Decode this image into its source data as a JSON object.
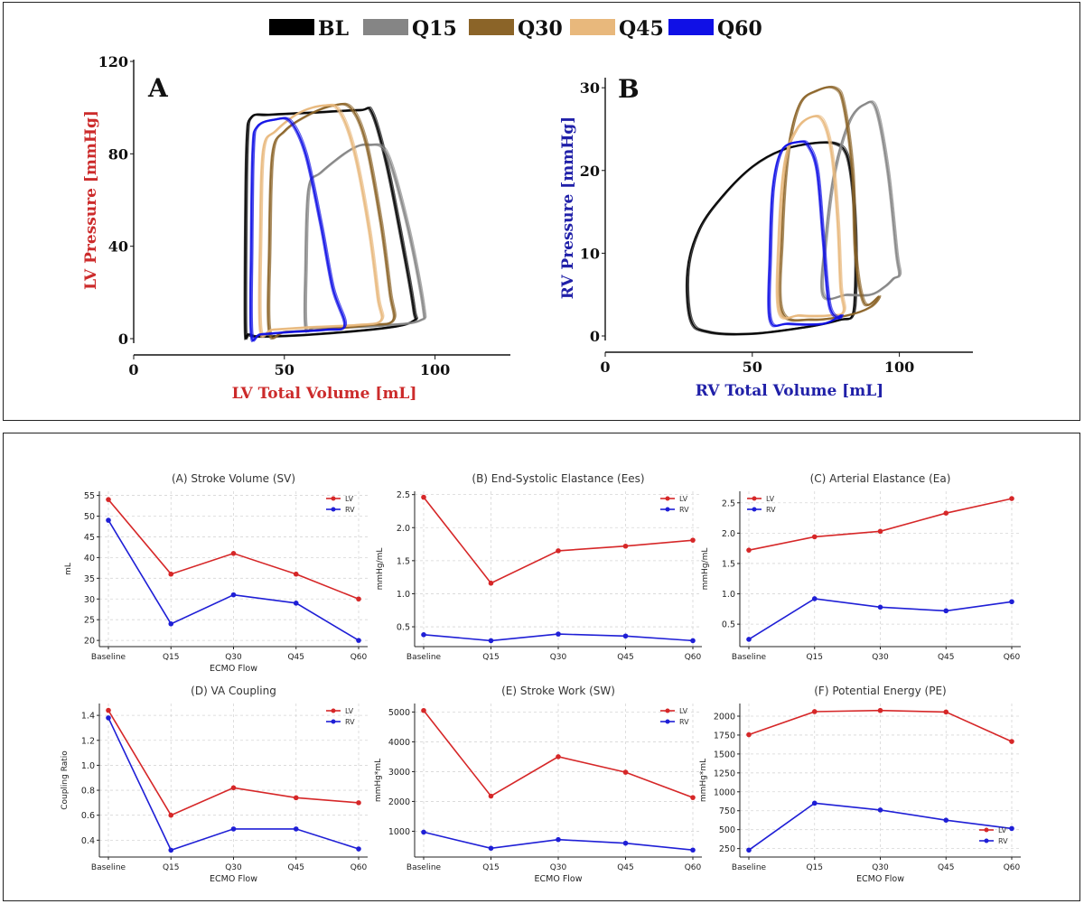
{
  "colors": {
    "BL": "#000000",
    "Q15": "#858585",
    "Q30": "#8B6428",
    "Q45": "#E8B87C",
    "Q60": "#1010E6",
    "LV": "#d62728",
    "RV": "#1f1fd6",
    "lv_label": "#cc2b2b",
    "rv_label": "#2020a8"
  },
  "top_legend": [
    {
      "key": "BL",
      "label": "BL"
    },
    {
      "key": "Q15",
      "label": "Q15"
    },
    {
      "key": "Q30",
      "label": "Q30"
    },
    {
      "key": "Q45",
      "label": "Q45"
    },
    {
      "key": "Q60",
      "label": "Q60"
    }
  ],
  "pv_loops": [
    {
      "panel_label": "A",
      "xlabel": "LV Total Volume [mL]",
      "ylabel": "LV Pressure [mmHg]",
      "xlim": [
        0,
        125
      ],
      "ylim": [
        0,
        120
      ],
      "xticks": [
        0,
        50,
        100
      ],
      "yticks": [
        0,
        40,
        80,
        120
      ],
      "label_color": "lv_label",
      "loops": [
        {
          "key": "BL",
          "points": [
            [
              37,
              3
            ],
            [
              37,
              40
            ],
            [
              37.5,
              85
            ],
            [
              39,
              96
            ],
            [
              45,
              97
            ],
            [
              60,
              98
            ],
            [
              75,
              99
            ],
            [
              79,
              98
            ],
            [
              84,
              75
            ],
            [
              90,
              35
            ],
            [
              93,
              12
            ],
            [
              93,
              8
            ],
            [
              85,
              5
            ],
            [
              60,
              2
            ],
            [
              42,
              1
            ],
            [
              38,
              2
            ]
          ]
        },
        {
          "key": "Q15",
          "points": [
            [
              57,
              5
            ],
            [
              57,
              30
            ],
            [
              58,
              65
            ],
            [
              62,
              72
            ],
            [
              72,
              82
            ],
            [
              78,
              84
            ],
            [
              84,
              80
            ],
            [
              91,
              48
            ],
            [
              96,
              14
            ],
            [
              95,
              8
            ],
            [
              85,
              6
            ],
            [
              70,
              5
            ],
            [
              60,
              5
            ]
          ]
        },
        {
          "key": "Q30",
          "points": [
            [
              45,
              3
            ],
            [
              45,
              40
            ],
            [
              46,
              80
            ],
            [
              50,
              90
            ],
            [
              58,
              97
            ],
            [
              66,
              101
            ],
            [
              72,
              100
            ],
            [
              77,
              85
            ],
            [
              82,
              50
            ],
            [
              85,
              20
            ],
            [
              86,
              8
            ],
            [
              78,
              6
            ],
            [
              62,
              4
            ],
            [
              50,
              3
            ]
          ]
        },
        {
          "key": "Q45",
          "points": [
            [
              42,
              4
            ],
            [
              42,
              45
            ],
            [
              43,
              82
            ],
            [
              47,
              90
            ],
            [
              55,
              98
            ],
            [
              63,
              101
            ],
            [
              68,
              99
            ],
            [
              73,
              82
            ],
            [
              78,
              48
            ],
            [
              81,
              18
            ],
            [
              82,
              8
            ],
            [
              74,
              6
            ],
            [
              58,
              5
            ],
            [
              46,
              4
            ]
          ]
        },
        {
          "key": "Q60",
          "points": [
            [
              39,
              2
            ],
            [
              39,
              40
            ],
            [
              39.5,
              82
            ],
            [
              41,
              92
            ],
            [
              47,
              95
            ],
            [
              52,
              94
            ],
            [
              57,
              80
            ],
            [
              62,
              50
            ],
            [
              66,
              22
            ],
            [
              70,
              6
            ],
            [
              64,
              4
            ],
            [
              52,
              3
            ],
            [
              42,
              2
            ]
          ]
        }
      ]
    },
    {
      "panel_label": "B",
      "xlabel": "RV Total Volume [mL]",
      "ylabel": "RV Pressure [mmHg]",
      "xlim": [
        0,
        125
      ],
      "ylim": [
        0,
        31
      ],
      "xticks": [
        0,
        50,
        100
      ],
      "yticks": [
        0,
        10,
        20,
        30
      ],
      "label_color": "rv_label",
      "loops": [
        {
          "key": "BL",
          "points": [
            [
              70,
              23.3
            ],
            [
              78,
              23.3
            ],
            [
              82,
              22
            ],
            [
              84,
              18
            ],
            [
              85,
              12
            ],
            [
              85,
              6
            ],
            [
              84,
              2.5
            ],
            [
              80,
              2
            ],
            [
              70,
              1.2
            ],
            [
              50,
              0.3
            ],
            [
              35,
              0.5
            ],
            [
              29,
              2
            ],
            [
              28,
              8
            ],
            [
              32,
              13
            ],
            [
              40,
              17
            ],
            [
              50,
              20.5
            ],
            [
              60,
              22.5
            ]
          ]
        },
        {
          "key": "Q15",
          "points": [
            [
              74,
              5
            ],
            [
              75,
              12
            ],
            [
              78,
              20
            ],
            [
              83,
              26
            ],
            [
              88,
              28
            ],
            [
              92,
              27.5
            ],
            [
              96,
              20
            ],
            [
              99,
              10
            ],
            [
              100,
              7.5
            ],
            [
              98,
              7
            ],
            [
              95,
              6
            ],
            [
              90,
              5
            ],
            [
              82,
              5
            ]
          ]
        },
        {
          "key": "Q30",
          "points": [
            [
              60,
              3
            ],
            [
              60,
              12
            ],
            [
              62,
              22
            ],
            [
              66,
              28
            ],
            [
              72,
              29.7
            ],
            [
              78,
              30
            ],
            [
              81,
              28
            ],
            [
              84,
              20
            ],
            [
              85,
              10
            ],
            [
              88,
              4
            ],
            [
              93,
              4.8
            ],
            [
              90,
              3.5
            ],
            [
              82,
              2.5
            ],
            [
              70,
              2
            ]
          ]
        },
        {
          "key": "Q45",
          "points": [
            [
              59,
              3
            ],
            [
              59,
              12
            ],
            [
              61,
              21
            ],
            [
              65,
              25
            ],
            [
              70,
              26.5
            ],
            [
              74,
              26
            ],
            [
              77,
              22
            ],
            [
              79,
              14
            ],
            [
              80,
              6
            ],
            [
              81,
              3
            ],
            [
              76,
              2.5
            ],
            [
              66,
              2.5
            ]
          ]
        },
        {
          "key": "Q60",
          "points": [
            [
              56,
              2
            ],
            [
              56,
              10
            ],
            [
              57,
              18
            ],
            [
              60,
              22.5
            ],
            [
              66,
              23.5
            ],
            [
              69,
              23
            ],
            [
              72,
              20
            ],
            [
              74,
              12
            ],
            [
              76,
              4
            ],
            [
              79,
              2.2
            ],
            [
              80,
              2.5
            ],
            [
              74,
              1.5
            ],
            [
              62,
              1.5
            ]
          ]
        }
      ]
    }
  ],
  "chart_data": [
    {
      "type": "line",
      "title": "(A) Stroke Volume (SV)",
      "categories": [
        "Baseline",
        "Q15",
        "Q30",
        "Q45",
        "Q60"
      ],
      "series": [
        {
          "name": "LV",
          "values": [
            54,
            36,
            41,
            36,
            30
          ]
        },
        {
          "name": "RV",
          "values": [
            49,
            24,
            31,
            29,
            20
          ]
        }
      ],
      "xlabel": "ECMO Flow",
      "ylabel": "mL",
      "ylim": [
        18.5,
        56
      ],
      "yticks": [
        20,
        25,
        30,
        35,
        40,
        45,
        50,
        55
      ],
      "ytick_labels": [
        "20",
        "25",
        "30",
        "35",
        "40",
        "45",
        "50",
        "55"
      ],
      "show_xlabel": true,
      "legend": "top-right"
    },
    {
      "type": "line",
      "title": "(B) End-Systolic Elastance (Ees)",
      "categories": [
        "Baseline",
        "Q15",
        "Q30",
        "Q45",
        "Q60"
      ],
      "series": [
        {
          "name": "LV",
          "values": [
            2.46,
            1.16,
            1.65,
            1.72,
            1.81
          ]
        },
        {
          "name": "RV",
          "values": [
            0.38,
            0.29,
            0.39,
            0.36,
            0.29
          ]
        }
      ],
      "xlabel": "ECMO Flow",
      "ylabel": "mmHg/mL",
      "ylim": [
        0.2,
        2.55
      ],
      "yticks": [
        0.5,
        1.0,
        1.5,
        2.0,
        2.5
      ],
      "ytick_labels": [
        "0.5",
        "1.0",
        "1.5",
        "2.0",
        "2.5"
      ],
      "show_xlabel": false,
      "legend": "top-right"
    },
    {
      "type": "line",
      "title": "(C) Arterial Elastance (Ea)",
      "categories": [
        "Baseline",
        "Q15",
        "Q30",
        "Q45",
        "Q60"
      ],
      "series": [
        {
          "name": "LV",
          "values": [
            1.72,
            1.94,
            2.03,
            2.33,
            2.57
          ]
        },
        {
          "name": "RV",
          "values": [
            0.25,
            0.92,
            0.78,
            0.72,
            0.87
          ]
        }
      ],
      "xlabel": "ECMO Flow",
      "ylabel": "mmHg/mL",
      "ylim": [
        0.13,
        2.69
      ],
      "yticks": [
        0.5,
        1.0,
        1.5,
        2.0,
        2.5
      ],
      "ytick_labels": [
        "0.5",
        "1.0",
        "1.5",
        "2.0",
        "2.5"
      ],
      "show_xlabel": false,
      "legend": "top-left"
    },
    {
      "type": "line",
      "title": "(D) VA Coupling",
      "categories": [
        "Baseline",
        "Q15",
        "Q30",
        "Q45",
        "Q60"
      ],
      "series": [
        {
          "name": "LV",
          "values": [
            1.44,
            0.6,
            0.82,
            0.74,
            0.7
          ]
        },
        {
          "name": "RV",
          "values": [
            1.38,
            0.32,
            0.49,
            0.49,
            0.33
          ]
        }
      ],
      "xlabel": "ECMO Flow",
      "ylabel": "Coupling Ratio",
      "ylim": [
        0.265,
        1.495
      ],
      "yticks": [
        0.4,
        0.6,
        0.8,
        1.0,
        1.2,
        1.4
      ],
      "ytick_labels": [
        "0.4",
        "0.6",
        "0.8",
        "1.0",
        "1.2",
        "1.4"
      ],
      "show_xlabel": true,
      "legend": "top-right"
    },
    {
      "type": "line",
      "title": "(E) Stroke Work (SW)",
      "categories": [
        "Baseline",
        "Q15",
        "Q30",
        "Q45",
        "Q60"
      ],
      "series": [
        {
          "name": "LV",
          "values": [
            5050,
            2180,
            3500,
            2980,
            2130
          ]
        },
        {
          "name": "RV",
          "values": [
            970,
            430,
            720,
            600,
            370
          ]
        }
      ],
      "xlabel": "ECMO Flow",
      "ylabel": "mmHg*mL",
      "ylim": [
        135,
        5285
      ],
      "yticks": [
        1000,
        2000,
        3000,
        4000,
        5000
      ],
      "ytick_labels": [
        "1000",
        "2000",
        "3000",
        "4000",
        "5000"
      ],
      "show_xlabel": true,
      "legend": "top-right"
    },
    {
      "type": "line",
      "title": "(F) Potential Energy (PE)",
      "categories": [
        "Baseline",
        "Q15",
        "Q30",
        "Q45",
        "Q60"
      ],
      "series": [
        {
          "name": "LV",
          "values": [
            1755,
            2060,
            2075,
            2055,
            1665
          ]
        },
        {
          "name": "RV",
          "values": [
            230,
            850,
            760,
            625,
            515
          ]
        }
      ],
      "xlabel": "ECMO Flow",
      "ylabel": "mmHg*mL",
      "ylim": [
        138,
        2167
      ],
      "yticks": [
        250,
        500,
        750,
        1000,
        1250,
        1500,
        1750,
        2000
      ],
      "ytick_labels": [
        "250",
        "500",
        "750",
        "1000",
        "1250",
        "1500",
        "1750",
        "2000"
      ],
      "show_xlabel": true,
      "legend": "bottom-right"
    }
  ]
}
